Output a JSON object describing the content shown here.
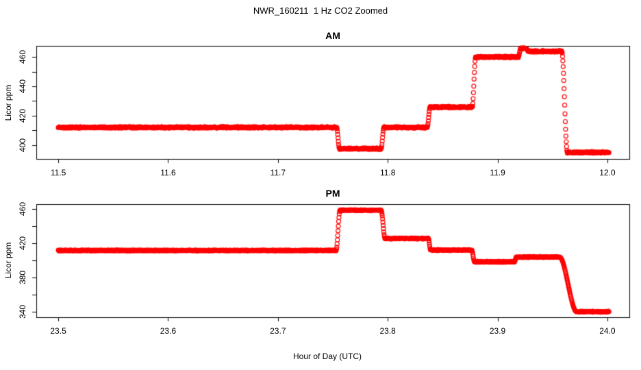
{
  "title": "NWR_160211  1 Hz CO2 Zoomed",
  "xlabel": "Hour of Day (UTC)",
  "chart_data": [
    {
      "type": "scatter",
      "panel_title": "AM",
      "ylabel": "Licor ppm",
      "marker": "open-circle",
      "color": "#ff0000",
      "sample_interval_hours": 0.00027778,
      "x_ticks": [
        11.5,
        11.6,
        11.7,
        11.8,
        11.9,
        12.0
      ],
      "y_major_ticks": [
        400,
        420,
        440,
        460
      ],
      "y_ticks_all": [
        400,
        410,
        420,
        430,
        440,
        450,
        460
      ],
      "xlim": [
        11.48,
        12.02
      ],
      "ylim": [
        390.5,
        467.5
      ],
      "noise_ppm": 0.6,
      "steps": [
        {
          "start": 11.5,
          "end": 11.7535,
          "ppm": 412.0
        },
        {
          "start": 11.756,
          "end": 11.794,
          "ppm": 397.5
        },
        {
          "start": 11.7965,
          "end": 11.836,
          "ppm": 412.0
        },
        {
          "start": 11.8385,
          "end": 11.877,
          "ppm": 425.8
        },
        {
          "start": 11.88,
          "end": 11.919,
          "ppm": 460.0
        },
        {
          "start": 11.921,
          "end": 11.926,
          "ppm": 465.8
        },
        {
          "start": 11.928,
          "end": 11.9585,
          "ppm": 463.8
        },
        {
          "start": 11.9635,
          "end": 12.0015,
          "ppm": 395.0
        }
      ]
    },
    {
      "type": "scatter",
      "panel_title": "PM",
      "ylabel": "Licor ppm",
      "marker": "open-circle",
      "color": "#ff0000",
      "sample_interval_hours": 0.00027778,
      "x_ticks": [
        23.5,
        23.6,
        23.7,
        23.8,
        23.9,
        24.0
      ],
      "y_major_ticks": [
        340,
        380,
        420,
        460
      ],
      "y_ticks_all": [
        340,
        360,
        380,
        400,
        420,
        440,
        460
      ],
      "xlim": [
        23.48,
        24.02
      ],
      "ylim": [
        333.5,
        465.6
      ],
      "noise_ppm": 0.7,
      "steps": [
        {
          "start": 23.5,
          "end": 23.753,
          "ppm": 411.5
        },
        {
          "start": 23.7565,
          "end": 23.794,
          "ppm": 458.5
        },
        {
          "start": 23.7975,
          "end": 23.837,
          "ppm": 425.5
        },
        {
          "start": 23.839,
          "end": 23.8765,
          "ppm": 412.0
        },
        {
          "start": 23.879,
          "end": 23.9155,
          "ppm": 398.3
        },
        {
          "start": 23.917,
          "end": 23.9565,
          "ppm": 403.8
        },
        {
          "start": 23.972,
          "end": 24.0015,
          "ppm": 340.0
        }
      ]
    }
  ]
}
